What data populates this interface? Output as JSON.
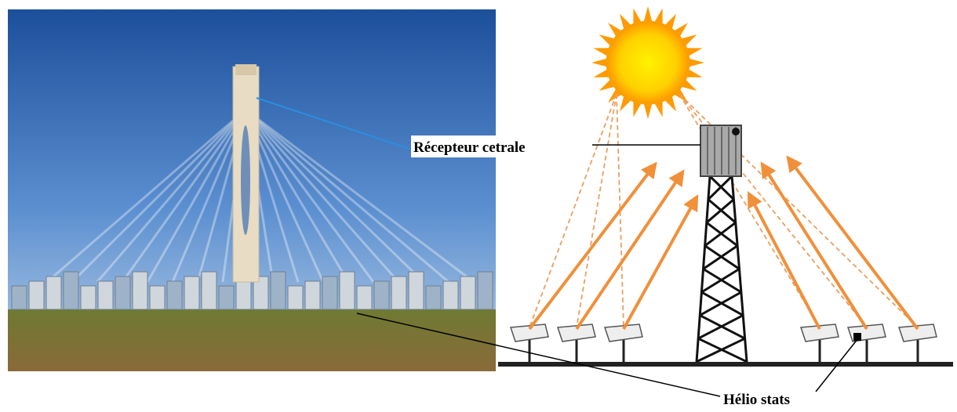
{
  "labels": {
    "receiver": "Récepteur cetrale",
    "heliostats": "Hélio stats"
  }
}
